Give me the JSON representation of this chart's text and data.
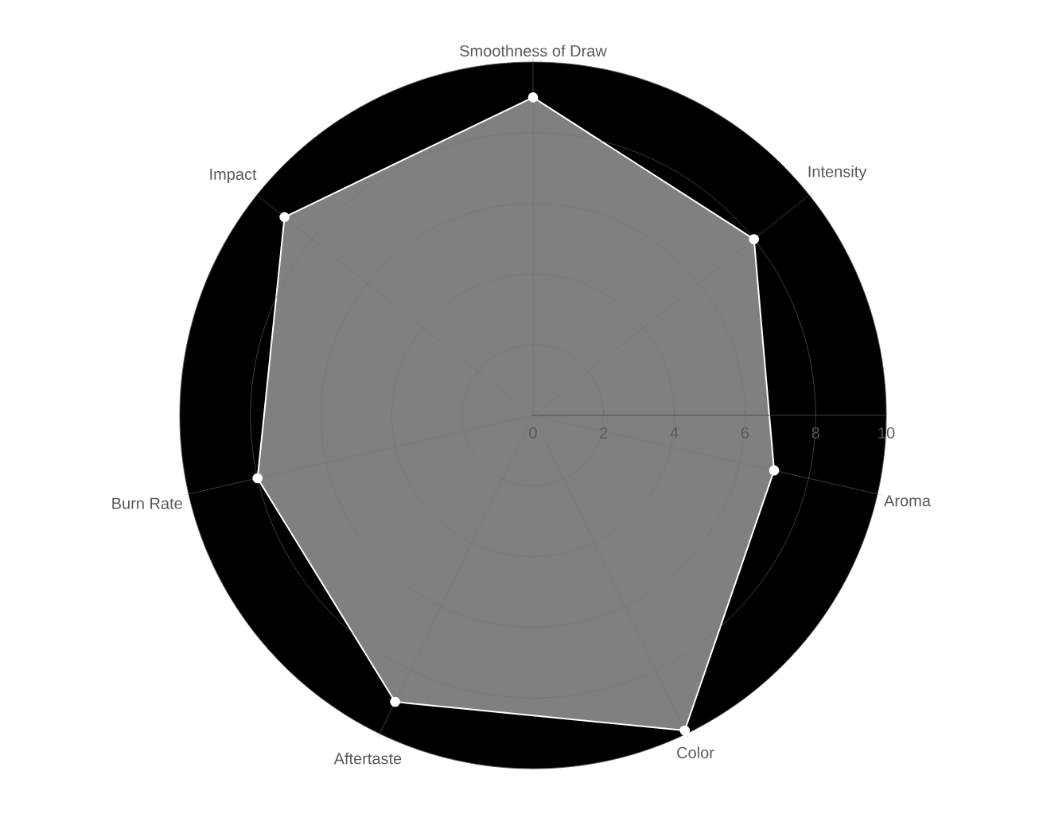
{
  "chart_data": {
    "type": "radar",
    "categories": [
      "Smoothness of Draw",
      "Intensity",
      "Aroma",
      "Color",
      "Aftertaste",
      "Burn Rate",
      "Impact"
    ],
    "series": [
      {
        "color": "#808080",
        "values": [
          9.0,
          8.0,
          7.0,
          9.9,
          9.0,
          8.0,
          9.0
        ]
      }
    ],
    "ylim": [
      0,
      10
    ],
    "yticks": [
      0,
      2,
      4,
      6,
      8,
      10
    ],
    "grid": true,
    "marker": "circle",
    "line_style": "solid"
  }
}
